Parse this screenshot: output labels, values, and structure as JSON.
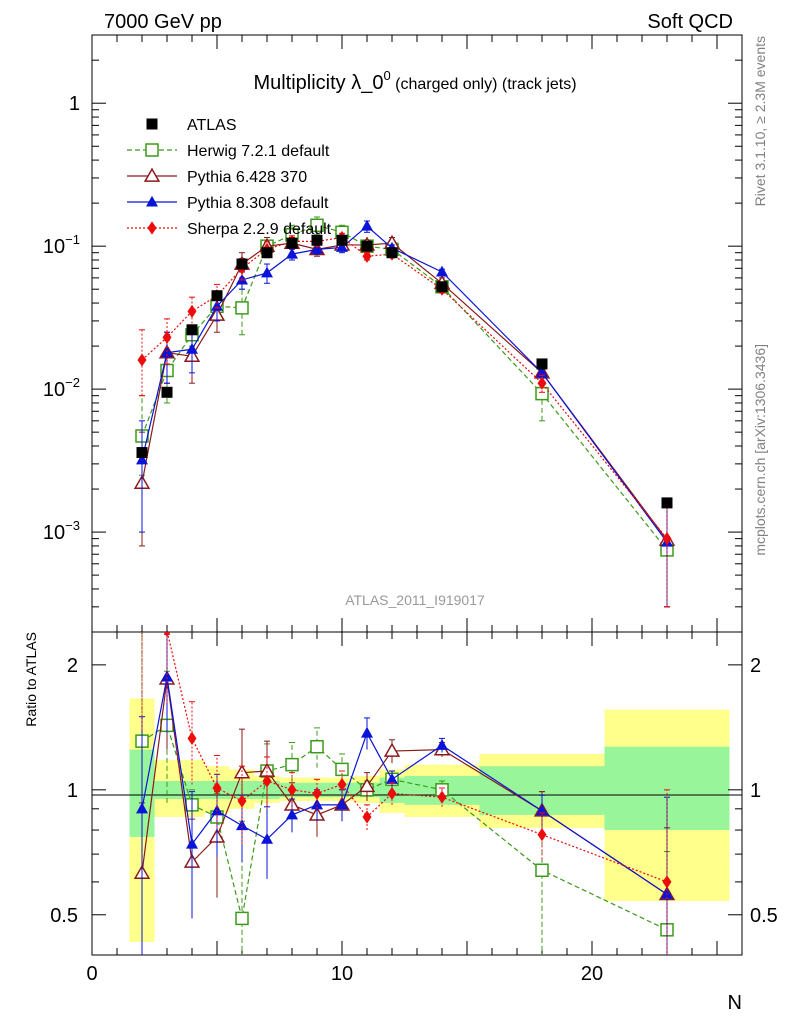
{
  "header": {
    "left": "7000 GeV pp",
    "right": "Soft QCD"
  },
  "side_labels": {
    "rivet": "Rivet 3.1.10, ≥ 2.3M events",
    "mcplots": "mcplots.cern.ch [arXiv:1306.3436]"
  },
  "watermark": "ATLAS_2011_I919017",
  "chart_data": {
    "type": "line",
    "title_main": "Multiplicity λ_0",
    "title_sup": "0",
    "title_sub": " (charged only) (track jets)",
    "xlabel": "N",
    "ylabel_ratio": "Ratio to ATLAS",
    "xlim": [
      0,
      26
    ],
    "ylim_main": [
      0.0002,
      3.0
    ],
    "ylim_ratio": [
      0.4,
      2.4
    ],
    "y_scale_main": "log",
    "y_scale_ratio": "log",
    "x_ticks": [
      "0",
      "10",
      "20"
    ],
    "y_ticks_main": [
      {
        "value": 1,
        "mant": "1",
        "exp": ""
      },
      {
        "value": 0.1,
        "mant": "10",
        "exp": "−1"
      },
      {
        "value": 0.01,
        "mant": "10",
        "exp": "−2"
      },
      {
        "value": 0.001,
        "mant": "10",
        "exp": "−3"
      }
    ],
    "y_ticks_ratio": [
      {
        "value": 2,
        "label": "2"
      },
      {
        "value": 1,
        "label": "1"
      },
      {
        "value": 0.5,
        "label": "0.5"
      }
    ],
    "legend_position": "top-left",
    "data_bins": [
      [
        1.5,
        2.5
      ],
      [
        2.5,
        3.5
      ],
      [
        3.5,
        4.5
      ],
      [
        4.5,
        5.5
      ],
      [
        5.5,
        6.5
      ],
      [
        6.5,
        7.5
      ],
      [
        7.5,
        8.5
      ],
      [
        8.5,
        9.5
      ],
      [
        9.5,
        10.5
      ],
      [
        10.5,
        11.5
      ],
      [
        11.5,
        12.5
      ],
      [
        12.5,
        15.5
      ],
      [
        15.5,
        20.5
      ],
      [
        20.5,
        25.5
      ]
    ],
    "band_inner": [
      [
        0.77,
        1.25
      ],
      [
        0.95,
        1.05
      ],
      [
        0.95,
        1.05
      ],
      [
        0.95,
        1.05
      ],
      [
        0.95,
        1.05
      ],
      [
        0.95,
        1.05
      ],
      [
        0.96,
        1.04
      ],
      [
        0.96,
        1.04
      ],
      [
        0.96,
        1.04
      ],
      [
        0.96,
        1.04
      ],
      [
        0.93,
        1.07
      ],
      [
        0.92,
        1.08
      ],
      [
        0.87,
        1.14
      ],
      [
        0.8,
        1.27
      ]
    ],
    "band_outer": [
      [
        0.43,
        1.66
      ],
      [
        0.86,
        1.18
      ],
      [
        0.86,
        1.18
      ],
      [
        0.88,
        1.14
      ],
      [
        0.9,
        1.12
      ],
      [
        0.93,
        1.08
      ],
      [
        0.94,
        1.07
      ],
      [
        0.94,
        1.07
      ],
      [
        0.94,
        1.07
      ],
      [
        0.93,
        1.08
      ],
      [
        0.88,
        1.12
      ],
      [
        0.86,
        1.15
      ],
      [
        0.81,
        1.22
      ],
      [
        0.54,
        1.56
      ]
    ],
    "series": [
      {
        "name": "ATLAS",
        "color": "#000000",
        "marker": "square-filled",
        "line": "none",
        "x": [
          2,
          3,
          4,
          5,
          6,
          7,
          8,
          9,
          10,
          11,
          12,
          14,
          18,
          23
        ],
        "y": [
          0.0036,
          0.0095,
          0.026,
          0.045,
          0.075,
          0.09,
          0.105,
          0.11,
          0.11,
          0.1,
          0.09,
          0.052,
          0.015,
          0.0016
        ]
      },
      {
        "name": "Herwig 7.2.1 default",
        "color": "#3c9a1a",
        "marker": "square-open",
        "line": "dashed",
        "x": [
          2,
          3,
          4,
          5,
          6,
          7,
          8,
          9,
          10,
          11,
          12,
          14,
          18,
          23
        ],
        "y": [
          0.0047,
          0.0135,
          0.024,
          0.038,
          0.037,
          0.1,
          0.12,
          0.14,
          0.125,
          0.1,
          0.095,
          0.052,
          0.0093,
          0.00075
        ],
        "ratio": [
          1.31,
          1.43,
          0.92,
          0.86,
          0.49,
          1.11,
          1.15,
          1.27,
          1.12,
          1.0,
          1.06,
          1.0,
          0.64,
          0.46
        ],
        "ratio_err": [
          1.7,
          0.5,
          0.08,
          0.12,
          0.35,
          0.18,
          0.15,
          0.14,
          0.1,
          0.05,
          0.05,
          0.05,
          0.35,
          0.25
        ]
      },
      {
        "name": "Pythia 6.428 370",
        "color": "#8b1a1a",
        "marker": "triangle-open",
        "line": "solid",
        "x": [
          2,
          3,
          4,
          5,
          6,
          7,
          8,
          9,
          10,
          11,
          12,
          14,
          18,
          23
        ],
        "y": [
          0.0022,
          0.018,
          0.017,
          0.033,
          0.075,
          0.1,
          0.105,
          0.095,
          0.102,
          0.102,
          0.105,
          0.055,
          0.013,
          0.00088
        ],
        "ratio": [
          0.63,
          1.85,
          0.67,
          0.77,
          1.1,
          1.11,
          0.92,
          0.87,
          0.92,
          1.02,
          1.24,
          1.25,
          0.89,
          0.56
        ],
        "ratio_err": [
          0.3,
          0.6,
          0.18,
          0.22,
          0.3,
          0.2,
          0.12,
          0.1,
          0.08,
          0.08,
          0.08,
          0.05,
          0.1,
          0.25
        ]
      },
      {
        "name": "Pythia 8.308 default",
        "color": "#0a14d8",
        "marker": "triangle-filled",
        "line": "solid",
        "x": [
          2,
          3,
          4,
          5,
          6,
          7,
          8,
          9,
          10,
          11,
          12,
          14,
          18,
          23
        ],
        "y": [
          0.0032,
          0.018,
          0.019,
          0.038,
          0.058,
          0.065,
          0.088,
          0.095,
          0.098,
          0.138,
          0.097,
          0.066,
          0.013,
          0.00085
        ],
        "ratio": [
          0.9,
          1.87,
          0.74,
          0.89,
          0.82,
          0.76,
          0.87,
          0.92,
          0.92,
          1.37,
          1.06,
          1.28,
          0.89,
          0.56
        ],
        "ratio_err": [
          0.6,
          0.5,
          0.25,
          0.2,
          0.15,
          0.15,
          0.08,
          0.08,
          0.08,
          0.12,
          0.05,
          0.05,
          0.08,
          0.4
        ]
      },
      {
        "name": "Sherpa 2.2.9 default",
        "color": "#ee0b0b",
        "marker": "diamond-filled",
        "line": "dotted",
        "x": [
          2,
          3,
          4,
          5,
          6,
          7,
          8,
          9,
          10,
          11,
          12,
          14,
          18,
          23
        ],
        "y": [
          0.016,
          0.023,
          0.035,
          0.045,
          0.07,
          0.095,
          0.108,
          0.108,
          0.115,
          0.085,
          0.088,
          0.05,
          0.011,
          0.0009
        ],
        "ratio": [
          4.4,
          2.42,
          1.33,
          1.01,
          0.94,
          1.05,
          1.0,
          0.98,
          1.03,
          0.86,
          0.98,
          0.96,
          0.78,
          0.6
        ],
        "ratio_err": [
          3.0,
          0.8,
          0.3,
          0.2,
          0.2,
          0.15,
          0.1,
          0.08,
          0.08,
          0.06,
          0.06,
          0.05,
          0.1,
          0.4
        ]
      }
    ],
    "main_errors": {
      "Herwig 7.2.1 default": [
        [
          0.0025,
          0.009
        ],
        [
          0.008,
          0.022
        ],
        [
          0.02,
          0.028
        ],
        [
          0.032,
          0.045
        ],
        [
          0.024,
          0.05
        ],
        [
          0.085,
          0.115
        ],
        [
          0.1,
          0.14
        ],
        [
          0.12,
          0.16
        ],
        [
          0.11,
          0.14
        ],
        [
          0.095,
          0.105
        ],
        [
          0.09,
          0.1
        ],
        [
          0.048,
          0.056
        ],
        [
          0.006,
          0.013
        ],
        [
          0.0003,
          0.0016
        ]
      ],
      "Pythia 6.428 370": [
        [
          0.0008,
          0.005
        ],
        [
          0.011,
          0.025
        ],
        [
          0.011,
          0.025
        ],
        [
          0.025,
          0.042
        ],
        [
          0.06,
          0.09
        ],
        [
          0.085,
          0.115
        ],
        [
          0.095,
          0.115
        ],
        [
          0.085,
          0.105
        ],
        [
          0.095,
          0.11
        ],
        [
          0.095,
          0.11
        ],
        [
          0.095,
          0.115
        ],
        [
          0.05,
          0.06
        ],
        [
          0.011,
          0.015
        ],
        [
          0.0003,
          0.0016
        ]
      ],
      "Pythia 8.308 default": [
        [
          0.001,
          0.006
        ],
        [
          0.011,
          0.025
        ],
        [
          0.013,
          0.025
        ],
        [
          0.03,
          0.045
        ],
        [
          0.05,
          0.066
        ],
        [
          0.055,
          0.075
        ],
        [
          0.08,
          0.096
        ],
        [
          0.088,
          0.102
        ],
        [
          0.09,
          0.106
        ],
        [
          0.125,
          0.15
        ],
        [
          0.092,
          0.102
        ],
        [
          0.063,
          0.069
        ],
        [
          0.012,
          0.014
        ],
        [
          0.0003,
          0.0016
        ]
      ],
      "Sherpa 2.2.9 default": [
        [
          0.009,
          0.026
        ],
        [
          0.015,
          0.031
        ],
        [
          0.027,
          0.044
        ],
        [
          0.037,
          0.054
        ],
        [
          0.058,
          0.082
        ],
        [
          0.083,
          0.107
        ],
        [
          0.098,
          0.118
        ],
        [
          0.1,
          0.116
        ],
        [
          0.107,
          0.123
        ],
        [
          0.08,
          0.09
        ],
        [
          0.083,
          0.093
        ],
        [
          0.047,
          0.053
        ],
        [
          0.0095,
          0.0125
        ],
        [
          0.0003,
          0.0016
        ]
      ]
    }
  }
}
